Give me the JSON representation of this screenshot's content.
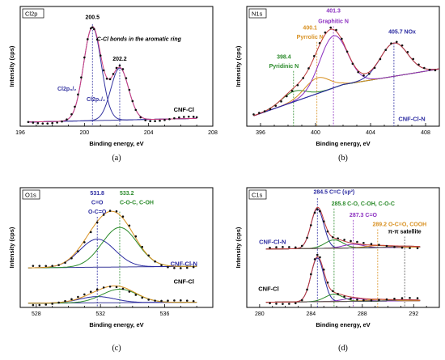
{
  "chart_data": [
    {
      "type": "line",
      "panel_letter": "(a)",
      "tag": "Cl2p",
      "xlabel": "Binding energy, eV",
      "ylabel": "Intensity (cps)",
      "xlim": [
        196,
        208
      ],
      "xticks": [
        196,
        200,
        204,
        208
      ],
      "x_reversed": false,
      "annotations": [
        {
          "text": "C-Cl bonds in the aromatic ring",
          "italic": true,
          "color": "#000000",
          "x": 203.4,
          "y": 0.82,
          "anchor": "middle"
        }
      ],
      "peak_labels": [
        {
          "text": "200.5",
          "x": 200.5,
          "y": 1.03,
          "color": "#000000",
          "anchor": "middle"
        },
        {
          "text": "202.2",
          "x": 202.2,
          "y": 0.63,
          "color": "#000000",
          "anchor": "middle"
        },
        {
          "text": "Cl2p₃/₂",
          "x": 199.5,
          "y": 0.34,
          "color": "#3333a0",
          "anchor": "end"
        },
        {
          "text": "Cl2p₁/₂",
          "x": 201.3,
          "y": 0.24,
          "color": "#3333a0",
          "anchor": "end"
        }
      ],
      "sample_labels": [
        {
          "text": "CNF-Cl",
          "x": 206.2,
          "y": 0.14,
          "color": "#000000",
          "anchor": "middle"
        }
      ],
      "vlines": [
        {
          "x": 200.5,
          "color": "#3333a0",
          "ymax": 0.98
        },
        {
          "x": 202.2,
          "color": "#3333a0",
          "ymax": 0.6
        }
      ],
      "groups": [
        {
          "offset": 0.04,
          "baseline": [
            [
              196.5,
              0.0
            ],
            [
              207,
              0.035
            ]
          ],
          "components": [
            {
              "center": 200.5,
              "amp": 0.9,
              "width": 0.55,
              "color": "#3333a0"
            },
            {
              "center": 202.2,
              "amp": 0.5,
              "width": 0.55,
              "color": "#3333a0"
            }
          ],
          "envelope_color": "#d04080",
          "points_x": [
            196.5,
            196.8,
            197.1,
            197.4,
            197.7,
            198.0,
            198.3,
            198.6,
            198.9,
            199.2,
            199.4,
            199.6,
            199.8,
            200.0,
            200.2,
            200.4,
            200.5,
            200.6,
            200.8,
            201.0,
            201.2,
            201.4,
            201.6,
            201.8,
            202.0,
            202.2,
            202.4,
            202.6,
            202.8,
            203.0,
            203.2,
            203.5,
            203.8,
            204.1,
            204.4,
            204.7,
            205.0,
            205.3,
            205.6,
            205.9,
            206.2,
            206.5,
            206.8,
            207.0
          ]
        }
      ]
    },
    {
      "type": "line",
      "panel_letter": "(b)",
      "tag": "N1s",
      "xlabel": "Binding energy, eV",
      "ylabel": "Intensity (cps)",
      "xlim": [
        395,
        409
      ],
      "xticks": [
        396,
        400,
        404,
        408
      ],
      "x_reversed": false,
      "annotations": [],
      "peak_labels": [
        {
          "text": "401.3",
          "x": 401.3,
          "y": 1.09,
          "color": "#8b2fc0",
          "anchor": "middle"
        },
        {
          "text": "Graphitic N",
          "x": 401.3,
          "y": 0.99,
          "color": "#8b2fc0",
          "anchor": "middle"
        },
        {
          "text": "400.1",
          "x": 399.6,
          "y": 0.93,
          "color": "#d89020",
          "anchor": "middle"
        },
        {
          "text": "Pyrrolic N",
          "x": 399.6,
          "y": 0.84,
          "color": "#d89020",
          "anchor": "middle"
        },
        {
          "text": "405.7 NOx",
          "x": 405.3,
          "y": 0.89,
          "color": "#2a2aa0",
          "anchor": "start"
        },
        {
          "text": "398.4",
          "x": 397.7,
          "y": 0.65,
          "color": "#2a8a2a",
          "anchor": "middle"
        },
        {
          "text": "Pyridinic N",
          "x": 397.7,
          "y": 0.56,
          "color": "#2a8a2a",
          "anchor": "middle"
        }
      ],
      "sample_labels": [
        {
          "text": "CNF-Cl-N",
          "x": 407.0,
          "y": 0.05,
          "color": "#2a2aa0",
          "anchor": "middle"
        }
      ],
      "vlines": [
        {
          "x": 398.4,
          "color": "#2a8a2a",
          "ymax": 0.53
        },
        {
          "x": 400.1,
          "color": "#d89020",
          "ymax": 0.81
        },
        {
          "x": 401.3,
          "color": "#8b2fc0",
          "ymax": 0.96
        },
        {
          "x": 405.7,
          "color": "#2a2aa0",
          "ymax": 0.8
        }
      ],
      "groups": [
        {
          "offset": 0.1,
          "baseline": [
            [
              395.5,
              0.0
            ],
            [
              402,
              0.3
            ],
            [
              409,
              0.45
            ]
          ],
          "components": [
            {
              "center": 398.4,
              "amp": 0.1,
              "width": 0.9,
              "color": "#2a8a2a"
            },
            {
              "center": 400.1,
              "amp": 0.15,
              "width": 0.9,
              "color": "#d89020"
            },
            {
              "center": 401.3,
              "amp": 0.5,
              "width": 1.0,
              "color": "#8b2fc0"
            },
            {
              "center": 405.7,
              "amp": 0.32,
              "width": 1.0,
              "color": "#2a2aa0"
            }
          ],
          "envelope_color": "#c03a3a",
          "points_x": [
            395.5,
            395.9,
            396.3,
            396.7,
            397.1,
            397.5,
            397.9,
            398.3,
            398.7,
            399.1,
            399.5,
            399.9,
            400.3,
            400.7,
            401.1,
            401.5,
            401.9,
            402.3,
            402.7,
            403.1,
            403.5,
            403.9,
            404.3,
            404.7,
            405.1,
            405.5,
            405.9,
            406.3,
            406.7,
            407.1,
            407.5,
            407.9,
            408.3,
            408.7
          ]
        }
      ]
    },
    {
      "type": "line",
      "panel_letter": "(c)",
      "tag": "O1s",
      "xlabel": "Binding energy, eV",
      "ylabel": "Intensity (cps)",
      "xlim": [
        527,
        539
      ],
      "xticks": [
        528,
        532,
        536
      ],
      "x_reversed": false,
      "annotations": [],
      "peak_labels": [
        {
          "text": "531.8",
          "x": 531.8,
          "y": 1.08,
          "color": "#2a2aa0",
          "anchor": "middle"
        },
        {
          "text": "C=O",
          "x": 531.8,
          "y": 0.99,
          "color": "#2a2aa0",
          "anchor": "middle"
        },
        {
          "text": "O-C=O",
          "x": 531.8,
          "y": 0.9,
          "color": "#2a2aa0",
          "anchor": "middle"
        },
        {
          "text": "533.2",
          "x": 533.2,
          "y": 1.08,
          "color": "#2a8a2a",
          "anchor": "start"
        },
        {
          "text": "C-O-C, C-OH",
          "x": 533.2,
          "y": 0.99,
          "color": "#2a8a2a",
          "anchor": "start"
        }
      ],
      "sample_labels": [
        {
          "text": "CNF-Cl-N",
          "x": 537.2,
          "y": 0.4,
          "color": "#2a2aa0",
          "anchor": "middle"
        },
        {
          "text": "CNF-Cl",
          "x": 537.2,
          "y": 0.23,
          "color": "#000000",
          "anchor": "middle"
        }
      ],
      "vlines": [
        {
          "x": 531.8,
          "color": "#2a2aa0",
          "ymax": 0.87
        },
        {
          "x": 533.2,
          "color": "#2a8a2a",
          "ymax": 0.92
        }
      ],
      "groups": [
        {
          "offset": 0.38,
          "baseline": [
            [
              527.5,
              0.0
            ],
            [
              538,
              0.015
            ]
          ],
          "components": [
            {
              "center": 531.8,
              "amp": 0.27,
              "width": 1.1,
              "color": "#2a2aa0"
            },
            {
              "center": 533.2,
              "amp": 0.38,
              "width": 1.1,
              "color": "#2a8a2a"
            }
          ],
          "envelope_color": "#d89020",
          "points_x": [
            527.8,
            528.2,
            528.6,
            529.0,
            529.4,
            529.8,
            530.2,
            530.6,
            531.0,
            531.4,
            531.8,
            532.2,
            532.6,
            533.0,
            533.4,
            533.8,
            534.2,
            534.6,
            535.0,
            535.4,
            535.8,
            536.2,
            536.6,
            537.0,
            537.4,
            537.8
          ]
        },
        {
          "offset": 0.04,
          "baseline": [
            [
              527.5,
              0.0
            ],
            [
              538,
              0.01
            ]
          ],
          "components": [
            {
              "center": 531.8,
              "amp": 0.06,
              "width": 1.1,
              "color": "#2a2aa0"
            },
            {
              "center": 533.2,
              "amp": 0.13,
              "width": 1.1,
              "color": "#2a8a2a"
            }
          ],
          "envelope_color": "#d89020",
          "points_x": [
            527.8,
            528.2,
            528.6,
            529.0,
            529.4,
            529.8,
            530.2,
            530.6,
            531.0,
            531.4,
            531.8,
            532.2,
            532.6,
            533.0,
            533.4,
            533.8,
            534.2,
            534.6,
            535.0,
            535.4,
            535.8,
            536.2,
            536.6,
            537.0,
            537.4,
            537.8
          ]
        }
      ]
    },
    {
      "type": "line",
      "panel_letter": "(d)",
      "tag": "C1s",
      "xlabel": "Binding energy, eV",
      "ylabel": "Intensity (cps)",
      "xlim": [
        279,
        294
      ],
      "xticks": [
        280,
        284,
        288,
        292
      ],
      "x_reversed": false,
      "annotations": [
        {
          "text": "π-π satellite",
          "italic": false,
          "color": "#000000",
          "x": 291.3,
          "y": 0.71,
          "anchor": "middle"
        }
      ],
      "peak_labels": [
        {
          "text": "284.5 C=C (sp²)",
          "x": 284.2,
          "y": 1.09,
          "color": "#2a2aa0",
          "anchor": "start"
        },
        {
          "text": "285.8 C-O, C-OH, C-O-C",
          "x": 285.6,
          "y": 0.98,
          "color": "#2a8a2a",
          "anchor": "start"
        },
        {
          "text": "287.3 C=O",
          "x": 287.0,
          "y": 0.87,
          "color": "#8b2fc0",
          "anchor": "start"
        },
        {
          "text": "289.2 O-C=O, COOH",
          "x": 288.8,
          "y": 0.78,
          "color": "#d89020",
          "anchor": "start"
        }
      ],
      "sample_labels": [
        {
          "text": "CNF-Cl-N",
          "x": 281.0,
          "y": 0.61,
          "color": "#2a2aa0",
          "anchor": "middle"
        },
        {
          "text": "CNF-Cl",
          "x": 280.7,
          "y": 0.16,
          "color": "#000000",
          "anchor": "middle"
        }
      ],
      "vlines": [
        {
          "x": 284.5,
          "color": "#2a2aa0",
          "ymax": 1.05
        },
        {
          "x": 285.8,
          "color": "#2a8a2a",
          "ymax": 0.95
        },
        {
          "x": 287.3,
          "color": "#8b2fc0",
          "ymax": 0.84
        },
        {
          "x": 289.2,
          "color": "#d89020",
          "ymax": 0.75
        },
        {
          "x": 291.3,
          "color": "#555555",
          "ymax": 0.68
        }
      ],
      "groups": [
        {
          "offset": 0.56,
          "baseline": [
            [
              280.5,
              0.0
            ],
            [
              292.5,
              0.02
            ]
          ],
          "components": [
            {
              "center": 284.5,
              "amp": 0.38,
              "width": 0.5,
              "color": "#2a2aa0"
            },
            {
              "center": 285.8,
              "amp": 0.08,
              "width": 0.7,
              "color": "#2a8a2a"
            },
            {
              "center": 287.3,
              "amp": 0.035,
              "width": 0.8,
              "color": "#8b2fc0"
            },
            {
              "center": 289.2,
              "amp": 0.02,
              "width": 0.9,
              "color": "#d89020"
            },
            {
              "center": 291.3,
              "amp": 0.01,
              "width": 1.0,
              "color": "#555555"
            }
          ],
          "envelope_color": "#c03a3a",
          "points_x": [
            280.8,
            281.3,
            281.8,
            282.3,
            282.8,
            283.3,
            283.7,
            284.0,
            284.3,
            284.5,
            284.7,
            285.0,
            285.3,
            285.7,
            286.1,
            286.6,
            287.1,
            287.6,
            288.1,
            288.7,
            289.3,
            289.9,
            290.5,
            291.1,
            291.7,
            292.3
          ]
        },
        {
          "offset": 0.05,
          "baseline": [
            [
              280.5,
              0.0
            ],
            [
              292.5,
              0.015
            ]
          ],
          "components": [
            {
              "center": 284.5,
              "amp": 0.42,
              "width": 0.5,
              "color": "#2a2aa0"
            },
            {
              "center": 285.8,
              "amp": 0.07,
              "width": 0.7,
              "color": "#2a8a2a"
            },
            {
              "center": 287.3,
              "amp": 0.03,
              "width": 0.8,
              "color": "#8b2fc0"
            },
            {
              "center": 289.2,
              "amp": 0.015,
              "width": 0.9,
              "color": "#d89020"
            },
            {
              "center": 291.3,
              "amp": 0.01,
              "width": 1.0,
              "color": "#555555"
            }
          ],
          "envelope_color": "#c03a3a",
          "points_x": [
            280.8,
            281.3,
            281.8,
            282.3,
            282.8,
            283.3,
            283.7,
            284.0,
            284.3,
            284.5,
            284.7,
            285.0,
            285.3,
            285.7,
            286.1,
            286.6,
            287.1,
            287.6,
            288.1,
            288.7,
            289.3,
            289.9,
            290.5,
            291.1,
            291.7,
            292.3
          ]
        }
      ]
    }
  ]
}
